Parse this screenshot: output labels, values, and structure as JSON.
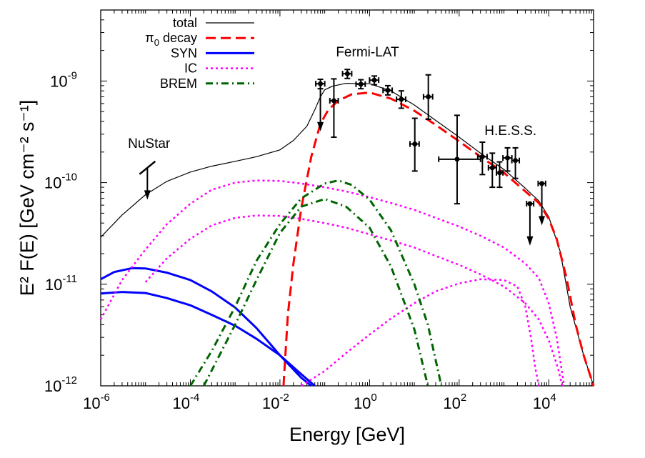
{
  "chart_data": {
    "type": "line",
    "title": "",
    "xlabel": "Energy [GeV]",
    "ylabel": "E² F(E) [GeV cm⁻² s⁻¹]",
    "x_scale": "log",
    "y_scale": "log",
    "xlim": [
      1e-06,
      100000.0
    ],
    "ylim": [
      1e-12,
      5e-09
    ],
    "grid": false,
    "legend_position": "top-left",
    "x_ticks": [
      {
        "value": 1e-06,
        "base": "10",
        "exp": "-6"
      },
      {
        "value": 0.0001,
        "base": "10",
        "exp": "-4"
      },
      {
        "value": 0.01,
        "base": "10",
        "exp": "-2"
      },
      {
        "value": 1,
        "base": "10",
        "exp": "0"
      },
      {
        "value": 100.0,
        "base": "10",
        "exp": "2"
      },
      {
        "value": 10000.0,
        "base": "10",
        "exp": "4"
      }
    ],
    "y_ticks": [
      {
        "value": 1e-12,
        "base": "10",
        "exp": "-12"
      },
      {
        "value": 1e-11,
        "base": "10",
        "exp": "-11"
      },
      {
        "value": 1e-10,
        "base": "10",
        "exp": "-10"
      },
      {
        "value": 1e-09,
        "base": "10",
        "exp": "-9"
      }
    ],
    "series": [
      {
        "name": "total",
        "style": "solid",
        "color": "#000000",
        "width": 1.2,
        "points": [
          [
            1e-06,
            2.9e-11
          ],
          [
            3e-06,
            4.8e-11
          ],
          [
            1e-05,
            7.6e-11
          ],
          [
            3e-05,
            1.03e-10
          ],
          [
            0.0001,
            1.27e-10
          ],
          [
            0.0003,
            1.45e-10
          ],
          [
            0.001,
            1.62e-10
          ],
          [
            0.003,
            1.8e-10
          ],
          [
            0.01,
            2.1e-10
          ],
          [
            0.02,
            2.6e-10
          ],
          [
            0.04,
            3.6e-10
          ],
          [
            0.06,
            5.2e-10
          ],
          [
            0.08,
            7e-10
          ],
          [
            0.1,
            8.2e-10
          ],
          [
            0.15,
            8.9e-10
          ],
          [
            0.3,
            9.5e-10
          ],
          [
            1,
            9.4e-10
          ],
          [
            3,
            8e-10
          ],
          [
            10,
            5.8e-10
          ],
          [
            30,
            4.1e-10
          ],
          [
            100,
            2.8e-10
          ],
          [
            300,
            1.95e-10
          ],
          [
            1000,
            1.35e-10
          ],
          [
            3000,
            8.8e-11
          ],
          [
            6000,
            6.6e-11
          ],
          [
            10000.0,
            4.6e-11
          ],
          [
            18000.0,
            2.1e-11
          ],
          [
            30000.0,
            6e-12
          ],
          [
            60000.0,
            2e-12
          ],
          [
            100000.0,
            1e-12
          ]
        ]
      },
      {
        "name": "π₀ decay",
        "style": "longdash",
        "color": "#ff0000",
        "width": 3,
        "points": [
          [
            0.012,
            1e-12
          ],
          [
            0.015,
            5e-12
          ],
          [
            0.02,
            1.6e-11
          ],
          [
            0.03,
            5.6e-11
          ],
          [
            0.05,
            1.8e-10
          ],
          [
            0.08,
            3.8e-10
          ],
          [
            0.12,
            5.2e-10
          ],
          [
            0.2,
            6.4e-10
          ],
          [
            0.4,
            7.4e-10
          ],
          [
            1,
            7.7e-10
          ],
          [
            3,
            6.7e-10
          ],
          [
            10,
            5.1e-10
          ],
          [
            30,
            3.7e-10
          ],
          [
            100,
            2.55e-10
          ],
          [
            300,
            1.8e-10
          ],
          [
            1000,
            1.25e-10
          ],
          [
            3000,
            8.2e-11
          ],
          [
            6000,
            6.3e-11
          ],
          [
            10000.0,
            4.4e-11
          ],
          [
            15000.0,
            2.8e-11
          ],
          [
            25000.0,
            1.15e-11
          ],
          [
            40000.0,
            4e-12
          ],
          [
            60000.0,
            2e-12
          ],
          [
            100000.0,
            1e-12
          ]
        ]
      },
      {
        "name": "SYN",
        "style": "solid",
        "color": "#0000ff",
        "width": 3,
        "points": [
          [
            1e-06,
            1.12e-11
          ],
          [
            2e-06,
            1.32e-11
          ],
          [
            5e-06,
            1.44e-11
          ],
          [
            1e-05,
            1.43e-11
          ],
          [
            3e-05,
            1.3e-11
          ],
          [
            0.0001,
            1.1e-11
          ],
          [
            0.0003,
            8.5e-12
          ],
          [
            0.001,
            5.9e-12
          ],
          [
            0.003,
            3.7e-12
          ],
          [
            0.01,
            2e-12
          ],
          [
            0.03,
            1.2e-12
          ],
          [
            0.05,
            1e-12
          ]
        ]
      },
      {
        "name": "",
        "style": "solid",
        "color": "#0000ff",
        "width": 3,
        "points": [
          [
            1e-06,
            8.1e-12
          ],
          [
            3e-06,
            8.4e-12
          ],
          [
            1e-05,
            8.2e-12
          ],
          [
            3e-05,
            7.3e-12
          ],
          [
            0.0001,
            6.2e-12
          ],
          [
            0.0003,
            5e-12
          ],
          [
            0.001,
            3.9e-12
          ],
          [
            0.003,
            2.9e-12
          ],
          [
            0.01,
            2e-12
          ],
          [
            0.03,
            1.3e-12
          ],
          [
            0.06,
            1e-12
          ]
        ]
      },
      {
        "name": "IC",
        "style": "dotted",
        "color": "#ff00ff",
        "width": 2.5,
        "points": [
          [
            1e-06,
            4.5e-12
          ],
          [
            3e-06,
            1.1e-11
          ],
          [
            1e-05,
            2.2e-11
          ],
          [
            3e-05,
            3.9e-11
          ],
          [
            0.0001,
            6.2e-11
          ],
          [
            0.0003,
            8.5e-11
          ],
          [
            0.001,
            1e-10
          ],
          [
            0.003,
            1.05e-10
          ],
          [
            0.01,
            1.04e-10
          ],
          [
            0.03,
            9.8e-11
          ],
          [
            0.1,
            9e-11
          ],
          [
            0.3,
            8.2e-11
          ],
          [
            1,
            7.2e-11
          ],
          [
            3,
            6.3e-11
          ],
          [
            10,
            5.4e-11
          ],
          [
            30,
            4.5e-11
          ],
          [
            100,
            3.7e-11
          ],
          [
            300,
            3e-11
          ],
          [
            1000,
            2.3e-11
          ],
          [
            3000,
            1.6e-11
          ],
          [
            6000,
            1.15e-11
          ],
          [
            10000.0,
            6.5e-12
          ],
          [
            15000.0,
            3e-12
          ],
          [
            22000.0,
            1e-12
          ]
        ]
      },
      {
        "name": "",
        "style": "dotted",
        "color": "#ff00ff",
        "width": 2.5,
        "points": [
          [
            1e-05,
            1.05e-11
          ],
          [
            3e-05,
            1.8e-11
          ],
          [
            0.0001,
            2.8e-11
          ],
          [
            0.0003,
            3.8e-11
          ],
          [
            0.001,
            4.5e-11
          ],
          [
            0.003,
            4.75e-11
          ],
          [
            0.01,
            4.7e-11
          ],
          [
            0.03,
            4.4e-11
          ],
          [
            0.1,
            4e-11
          ],
          [
            0.3,
            3.6e-11
          ],
          [
            1,
            3.1e-11
          ],
          [
            3,
            2.7e-11
          ],
          [
            10,
            2.3e-11
          ],
          [
            30,
            1.9e-11
          ],
          [
            100,
            1.55e-11
          ],
          [
            300,
            1.25e-11
          ],
          [
            1000,
            9.5e-12
          ],
          [
            3000,
            6.5e-12
          ],
          [
            6000,
            4.5e-12
          ],
          [
            10000.0,
            2.8e-12
          ],
          [
            16000.0,
            1.5e-12
          ],
          [
            20000.0,
            1e-12
          ]
        ]
      },
      {
        "name": "",
        "style": "dotted",
        "color": "#ff00ff",
        "width": 2.5,
        "points": [
          [
            0.03,
            1e-12
          ],
          [
            0.1,
            1.4e-12
          ],
          [
            0.3,
            2.1e-12
          ],
          [
            1,
            3.2e-12
          ],
          [
            3,
            4.6e-12
          ],
          [
            10,
            6.5e-12
          ],
          [
            30,
            8.5e-12
          ],
          [
            100,
            1.02e-11
          ],
          [
            300,
            1.12e-11
          ],
          [
            1000,
            1.1e-11
          ],
          [
            2000,
            9.5e-12
          ],
          [
            3000,
            6e-12
          ],
          [
            4000,
            3e-12
          ],
          [
            5000,
            1.5e-12
          ],
          [
            6000,
            1e-12
          ]
        ]
      },
      {
        "name": "BREM",
        "style": "dashdot",
        "color": "#006400",
        "width": 3,
        "points": [
          [
            0.0001,
            1e-12
          ],
          [
            0.0003,
            2.2e-12
          ],
          [
            0.001,
            6e-12
          ],
          [
            0.003,
            1.7e-11
          ],
          [
            0.01,
            3.9e-11
          ],
          [
            0.03,
            7e-11
          ],
          [
            0.1,
            9.8e-11
          ],
          [
            0.2,
            1.05e-10
          ],
          [
            0.4,
            9.5e-11
          ],
          [
            1,
            6.8e-11
          ],
          [
            3,
            3.4e-11
          ],
          [
            10,
            1e-11
          ],
          [
            20,
            4e-12
          ],
          [
            40,
            1e-12
          ]
        ]
      },
      {
        "name": "",
        "style": "dashdot",
        "color": "#006400",
        "width": 3,
        "points": [
          [
            0.0002,
            1e-12
          ],
          [
            0.0005,
            2.2e-12
          ],
          [
            0.001,
            4e-12
          ],
          [
            0.003,
            1.1e-11
          ],
          [
            0.01,
            3.2e-11
          ],
          [
            0.03,
            5.8e-11
          ],
          [
            0.1,
            6.9e-11
          ],
          [
            0.3,
            5.8e-11
          ],
          [
            1,
            3.6e-11
          ],
          [
            3,
            1.5e-11
          ],
          [
            10,
            3.6e-12
          ],
          [
            20,
            1e-12
          ]
        ]
      }
    ],
    "fermi_points": [
      {
        "x": 0.08,
        "y": 9.4e-10,
        "xerr": [
          0.063,
          0.1
        ],
        "yerr": [
          8.4e-10,
          1.04e-09
        ],
        "upper_limit": true,
        "ul_to": 3.2e-10
      },
      {
        "x": 0.16,
        "y": 6.4e-10,
        "xerr": [
          0.13,
          0.2
        ],
        "yerr": [
          2.8e-10,
          1.05e-09
        ]
      },
      {
        "x": 0.32,
        "y": 1.18e-09,
        "xerr": [
          0.25,
          0.4
        ],
        "yerr": [
          1.06e-09,
          1.3e-09
        ]
      },
      {
        "x": 0.64,
        "y": 9.3e-10,
        "xerr": [
          0.5,
          0.8
        ],
        "yerr": [
          8.4e-10,
          1.03e-09
        ]
      },
      {
        "x": 1.28,
        "y": 1.02e-09,
        "xerr": [
          1.0,
          1.6
        ],
        "yerr": [
          9.2e-10,
          1.12e-09
        ]
      },
      {
        "x": 2.56,
        "y": 8.1e-10,
        "xerr": [
          2.0,
          3.2
        ],
        "yerr": [
          7.3e-10,
          9e-10
        ]
      },
      {
        "x": 5.12,
        "y": 6.6e-10,
        "xerr": [
          4.0,
          6.4
        ],
        "yerr": [
          5.4e-10,
          8e-10
        ]
      },
      {
        "x": 10.24,
        "y": 2.4e-10,
        "xerr": [
          8.0,
          12.8
        ],
        "yerr": [
          1.3e-10,
          4.3e-10
        ]
      },
      {
        "x": 20.5,
        "y": 7e-10,
        "xerr": [
          16,
          25.6
        ],
        "yerr": [
          4.2e-10,
          1.15e-09
        ]
      }
    ],
    "hess_points": [
      {
        "x": 90,
        "y": 1.7e-10,
        "xerr": [
          35,
          300
        ],
        "yerr": [
          6.2e-11,
          4.6e-10
        ]
      },
      {
        "x": 330,
        "y": 1.8e-10,
        "xerr": [
          260,
          420
        ],
        "yerr": [
          1.2e-10,
          2.5e-10
        ]
      },
      {
        "x": 550,
        "y": 1.4e-10,
        "xerr": [
          450,
          680
        ],
        "yerr": [
          9e-11,
          1.95e-10
        ]
      },
      {
        "x": 800,
        "y": 1.25e-10,
        "xerr": [
          680,
          950
        ],
        "yerr": [
          9e-11,
          1.6e-10
        ]
      },
      {
        "x": 1200,
        "y": 1.75e-10,
        "xerr": [
          950,
          1500
        ],
        "yerr": [
          1.3e-10,
          2.2e-10
        ]
      },
      {
        "x": 1800,
        "y": 1.65e-10,
        "xerr": [
          1500,
          2200
        ],
        "yerr": [
          1.1e-10,
          2.2e-10
        ]
      },
      {
        "x": 3800,
        "y": 6.2e-11,
        "xerr": [
          3200,
          4600
        ],
        "yerr": [
          6.2e-11,
          6.2e-11
        ],
        "upper_limit": true,
        "ul_to": 2.4e-11
      },
      {
        "x": 7000,
        "y": 9.8e-11,
        "xerr": [
          5800,
          8500
        ],
        "yerr": [
          9.8e-11,
          9.8e-11
        ],
        "upper_limit": true,
        "ul_to": 3.8e-11
      }
    ],
    "nustar_limit": {
      "x": 1.1e-05,
      "y_top": 1.4e-10,
      "y_bottom": 6.8e-11
    },
    "annotations": [
      {
        "key": "fermi",
        "text": "Fermi-LAT",
        "x": 0.9,
        "y": 1.75e-09
      },
      {
        "key": "hess",
        "text": "H.E.S.S.",
        "x": 1400,
        "y": 2.95e-10
      },
      {
        "key": "nustar",
        "text": "NuStar",
        "x": 1.2e-05,
        "y": 2.2e-10
      }
    ]
  },
  "legend": {
    "items": [
      {
        "label": "total",
        "style": "solid",
        "color": "#000000",
        "width": 1.2
      },
      {
        "label": "decay",
        "prefix": "π",
        "sub": "0",
        "style": "longdash",
        "color": "#ff0000",
        "width": 3
      },
      {
        "label": "SYN",
        "style": "solid",
        "color": "#0000ff",
        "width": 3
      },
      {
        "label": "IC",
        "style": "dotted",
        "color": "#ff00ff",
        "width": 2.5
      },
      {
        "label": "BREM",
        "style": "dashdot",
        "color": "#006400",
        "width": 3
      }
    ]
  }
}
